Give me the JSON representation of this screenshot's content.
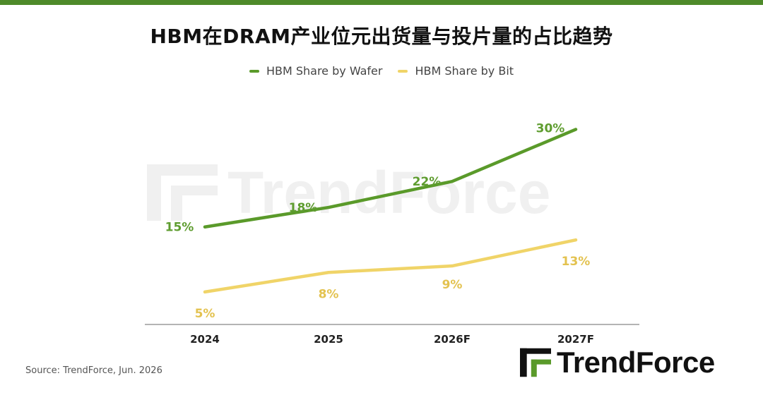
{
  "header": {
    "accent_color": "#4e8a2a"
  },
  "chart_data": {
    "type": "line",
    "title": "HBM在DRAM产业位元出货量与投片量的占比趋势",
    "xlabel": "",
    "ylabel": "",
    "categories": [
      "2024",
      "2025",
      "2026F",
      "2027F"
    ],
    "series": [
      {
        "name": "HBM Share by Wafer",
        "values": [
          15,
          18,
          22,
          30
        ],
        "labels": [
          "15%",
          "18%",
          "22%",
          "30%"
        ],
        "color": "#5a9a2a",
        "label_color": "#5f9d30"
      },
      {
        "name": "HBM Share by Bit",
        "values": [
          5,
          8,
          9,
          13
        ],
        "labels": [
          "5%",
          "8%",
          "9%",
          "13%"
        ],
        "color": "#f0d468",
        "label_color": "#e3c24f"
      }
    ],
    "ylim": [
      0,
      32
    ],
    "grid": false,
    "legend_position": "top-center"
  },
  "footer": {
    "source": "Source: TrendForce, Jun. 2026",
    "brand": "TrendForce",
    "watermark": "TrendForce"
  }
}
